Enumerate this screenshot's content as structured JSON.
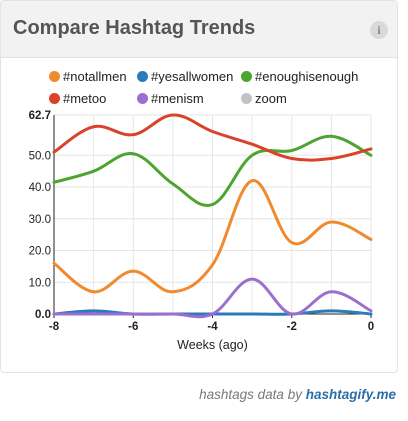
{
  "widget": {
    "title": "Compare Hashtag Trends",
    "info_icon_text": "i"
  },
  "legend": [
    {
      "label": "#notallmen",
      "color": "#f08a2e"
    },
    {
      "label": "#yesallwomen",
      "color": "#2b7bb9"
    },
    {
      "label": "#enoughisenough",
      "color": "#4ca52e"
    },
    {
      "label": "#metoo",
      "color": "#d9432b"
    },
    {
      "label": "#menism",
      "color": "#9b6fcf"
    },
    {
      "label": "zoom",
      "color": "#c2c2c2"
    }
  ],
  "credit": {
    "prefix": "hashtags data by",
    "link": "hashtagify.me"
  },
  "chart_data": {
    "type": "line",
    "xlabel": "Weeks (ago)",
    "ylabel": "",
    "x": [
      -8,
      -7,
      -6,
      -5,
      -4,
      -3,
      -2,
      -1,
      0
    ],
    "xticks": [
      -8,
      -6,
      -4,
      -2,
      0
    ],
    "xtick_labels": [
      "-8",
      "-6",
      "-4",
      "-2",
      "0"
    ],
    "xlim": [
      -8,
      0
    ],
    "ylim": [
      0,
      62.7
    ],
    "yticks": [
      0,
      10,
      20,
      30,
      40,
      50,
      62.7
    ],
    "ytick_labels": [
      "0.0",
      "10.0",
      "20.0",
      "30.0",
      "40.0",
      "50.0",
      "62.7"
    ],
    "grid": true,
    "series": [
      {
        "name": "#notallmen",
        "color": "#f08a2e",
        "values": [
          16,
          7,
          13.5,
          7,
          15.5,
          42,
          22.5,
          29,
          23.5
        ]
      },
      {
        "name": "#yesallwomen",
        "color": "#2b7bb9",
        "values": [
          0,
          1,
          0,
          0,
          0,
          0,
          0,
          1,
          0
        ]
      },
      {
        "name": "#enoughisenough",
        "color": "#4ca52e",
        "values": [
          41.5,
          45,
          50.5,
          41,
          34.5,
          50,
          51.5,
          56,
          50
        ]
      },
      {
        "name": "#metoo",
        "color": "#d9432b",
        "values": [
          51,
          59,
          56.5,
          62.7,
          57.5,
          53.5,
          49,
          49,
          52
        ]
      },
      {
        "name": "#menism",
        "color": "#9b6fcf",
        "values": [
          0,
          0,
          0,
          0,
          0,
          11,
          0,
          7,
          1
        ]
      }
    ]
  }
}
